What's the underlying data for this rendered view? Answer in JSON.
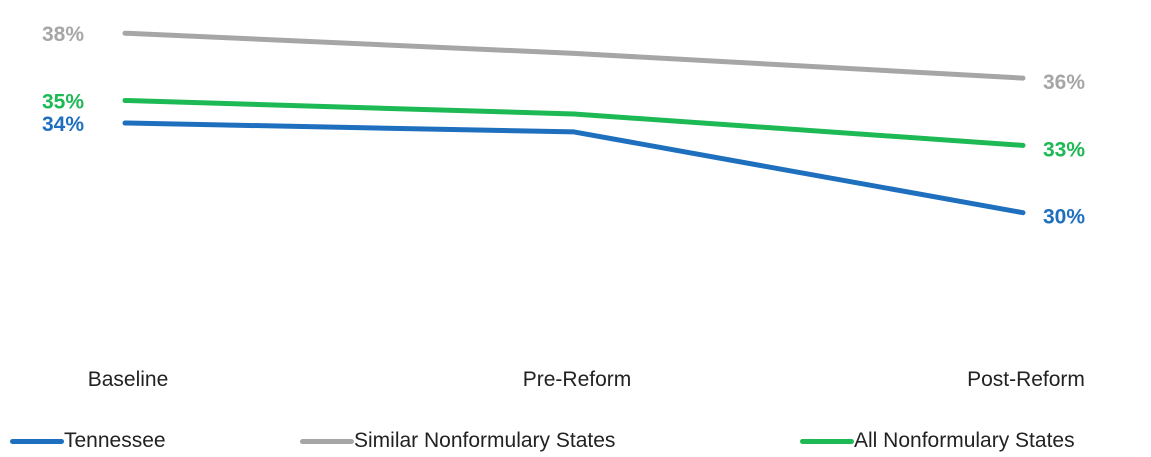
{
  "chart_data": {
    "type": "line",
    "categories": [
      "Baseline",
      "Pre-Reform",
      "Post-Reform"
    ],
    "series": [
      {
        "name": "Tennessee",
        "values": [
          34,
          33.6,
          30
        ],
        "color": "#1F6FBF",
        "labels": [
          "34%",
          "",
          "30%"
        ]
      },
      {
        "name": "Similar Nonformulary States",
        "values": [
          38,
          37.1,
          36
        ],
        "color": "#A6A6A6",
        "labels": [
          "38%",
          "",
          "36%"
        ]
      },
      {
        "name": "All Nonformulary States",
        "values": [
          35,
          34.4,
          33
        ],
        "color": "#1DB954",
        "labels": [
          "35%",
          "",
          "33%"
        ]
      }
    ],
    "ylim": [
      27,
      38.5
    ],
    "grid": false,
    "legend_position": "bottom"
  }
}
